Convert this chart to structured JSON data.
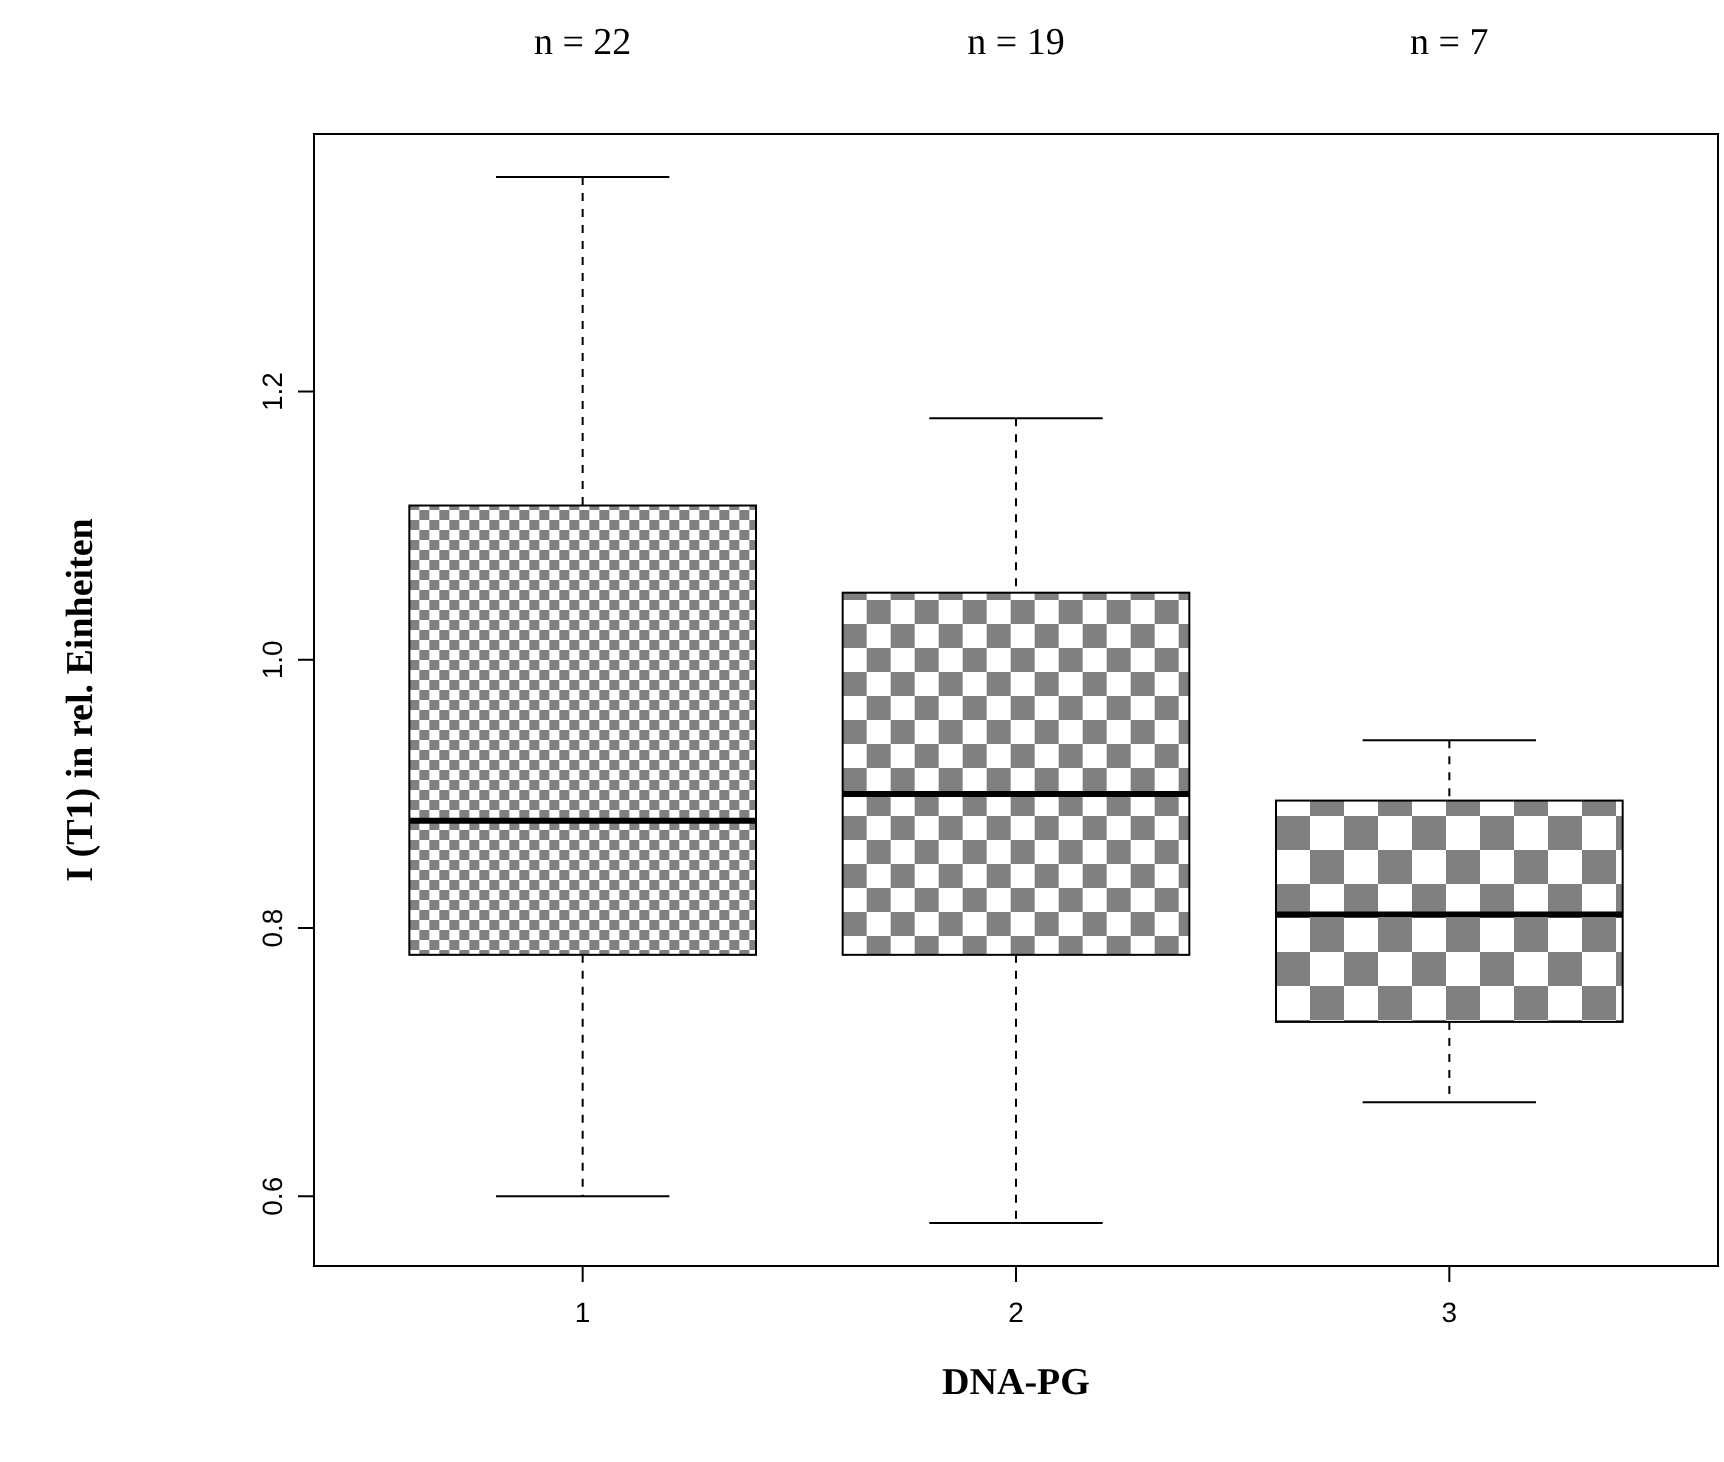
{
  "chart_data": {
    "type": "box",
    "xlabel": "DNA-PG",
    "ylabel": "I (T1) in rel. Einheiten",
    "categories": [
      "1",
      "2",
      "3"
    ],
    "boxes": [
      {
        "low": 0.6,
        "q1": 0.78,
        "median": 0.88,
        "q3": 1.115,
        "high": 1.36
      },
      {
        "low": 0.58,
        "q1": 0.78,
        "median": 0.9,
        "q3": 1.05,
        "high": 1.18
      },
      {
        "low": 0.67,
        "q1": 0.73,
        "median": 0.81,
        "q3": 0.895,
        "high": 0.94
      }
    ],
    "ylim": [
      0.548,
      1.392
    ],
    "yticks": [
      0.6,
      0.8,
      {
        "value": 1,
        "label": "1.0"
      },
      1.2
    ],
    "annotations": [
      "n = 22",
      "n = 19",
      "n = 7"
    ],
    "grid": false
  }
}
